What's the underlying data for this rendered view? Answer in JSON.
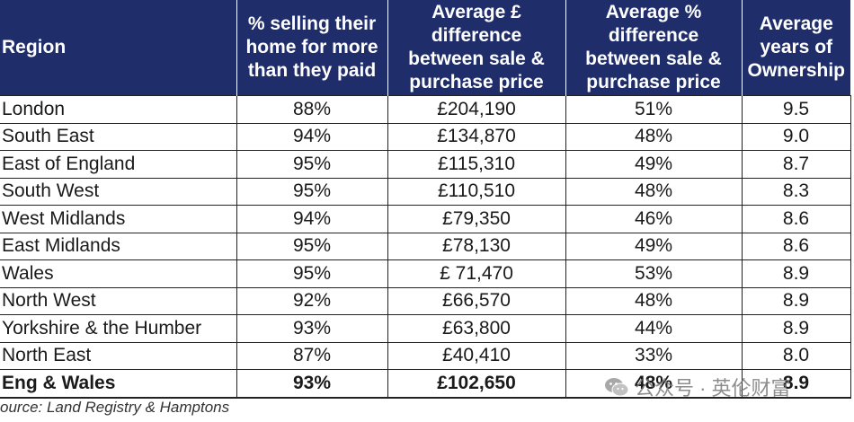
{
  "table": {
    "headers": {
      "region": "Region",
      "pct_selling": "% selling their home for more than they paid",
      "avg_diff_gbp": "Average £ difference between sale & purchase price",
      "avg_diff_pct": "Average % difference between sale & purchase price",
      "avg_years": "Average years of Ownership"
    },
    "rows": [
      {
        "region": "London",
        "pct_selling": "88%",
        "avg_diff_gbp": "£204,190",
        "avg_diff_pct": "51%",
        "avg_years": "9.5"
      },
      {
        "region": "South East",
        "pct_selling": "94%",
        "avg_diff_gbp": "£134,870",
        "avg_diff_pct": "48%",
        "avg_years": "9.0"
      },
      {
        "region": "East of England",
        "pct_selling": "95%",
        "avg_diff_gbp": "£115,310",
        "avg_diff_pct": "49%",
        "avg_years": "8.7"
      },
      {
        "region": "South West",
        "pct_selling": "95%",
        "avg_diff_gbp": "£110,510",
        "avg_diff_pct": "48%",
        "avg_years": "8.3"
      },
      {
        "region": "West Midlands",
        "pct_selling": "94%",
        "avg_diff_gbp": "£79,350",
        "avg_diff_pct": "46%",
        "avg_years": "8.6"
      },
      {
        "region": "East Midlands",
        "pct_selling": "95%",
        "avg_diff_gbp": "£78,130",
        "avg_diff_pct": "49%",
        "avg_years": "8.6"
      },
      {
        "region": "Wales",
        "pct_selling": "95%",
        "avg_diff_gbp": "£ 71,470",
        "avg_diff_pct": "53%",
        "avg_years": "8.9"
      },
      {
        "region": "North West",
        "pct_selling": "92%",
        "avg_diff_gbp": "£66,570",
        "avg_diff_pct": "48%",
        "avg_years": "8.9"
      },
      {
        "region": "Yorkshire & the Humber",
        "pct_selling": "93%",
        "avg_diff_gbp": "£63,800",
        "avg_diff_pct": "44%",
        "avg_years": "8.9"
      },
      {
        "region": "North East",
        "pct_selling": "87%",
        "avg_diff_gbp": "£40,410",
        "avg_diff_pct": "33%",
        "avg_years": "8.0"
      }
    ],
    "total": {
      "region": "Eng & Wales",
      "pct_selling": "93%",
      "avg_diff_gbp": "£102,650",
      "avg_diff_pct": "48%",
      "avg_years": "8.9"
    }
  },
  "source": "ource: Land Registry & Hamptons",
  "watermark": {
    "text": "公众号 · 英伦财富",
    "icon": "wechat-icon"
  },
  "colors": {
    "header_bg": "#1f2d6b",
    "header_text": "#ffffff"
  }
}
